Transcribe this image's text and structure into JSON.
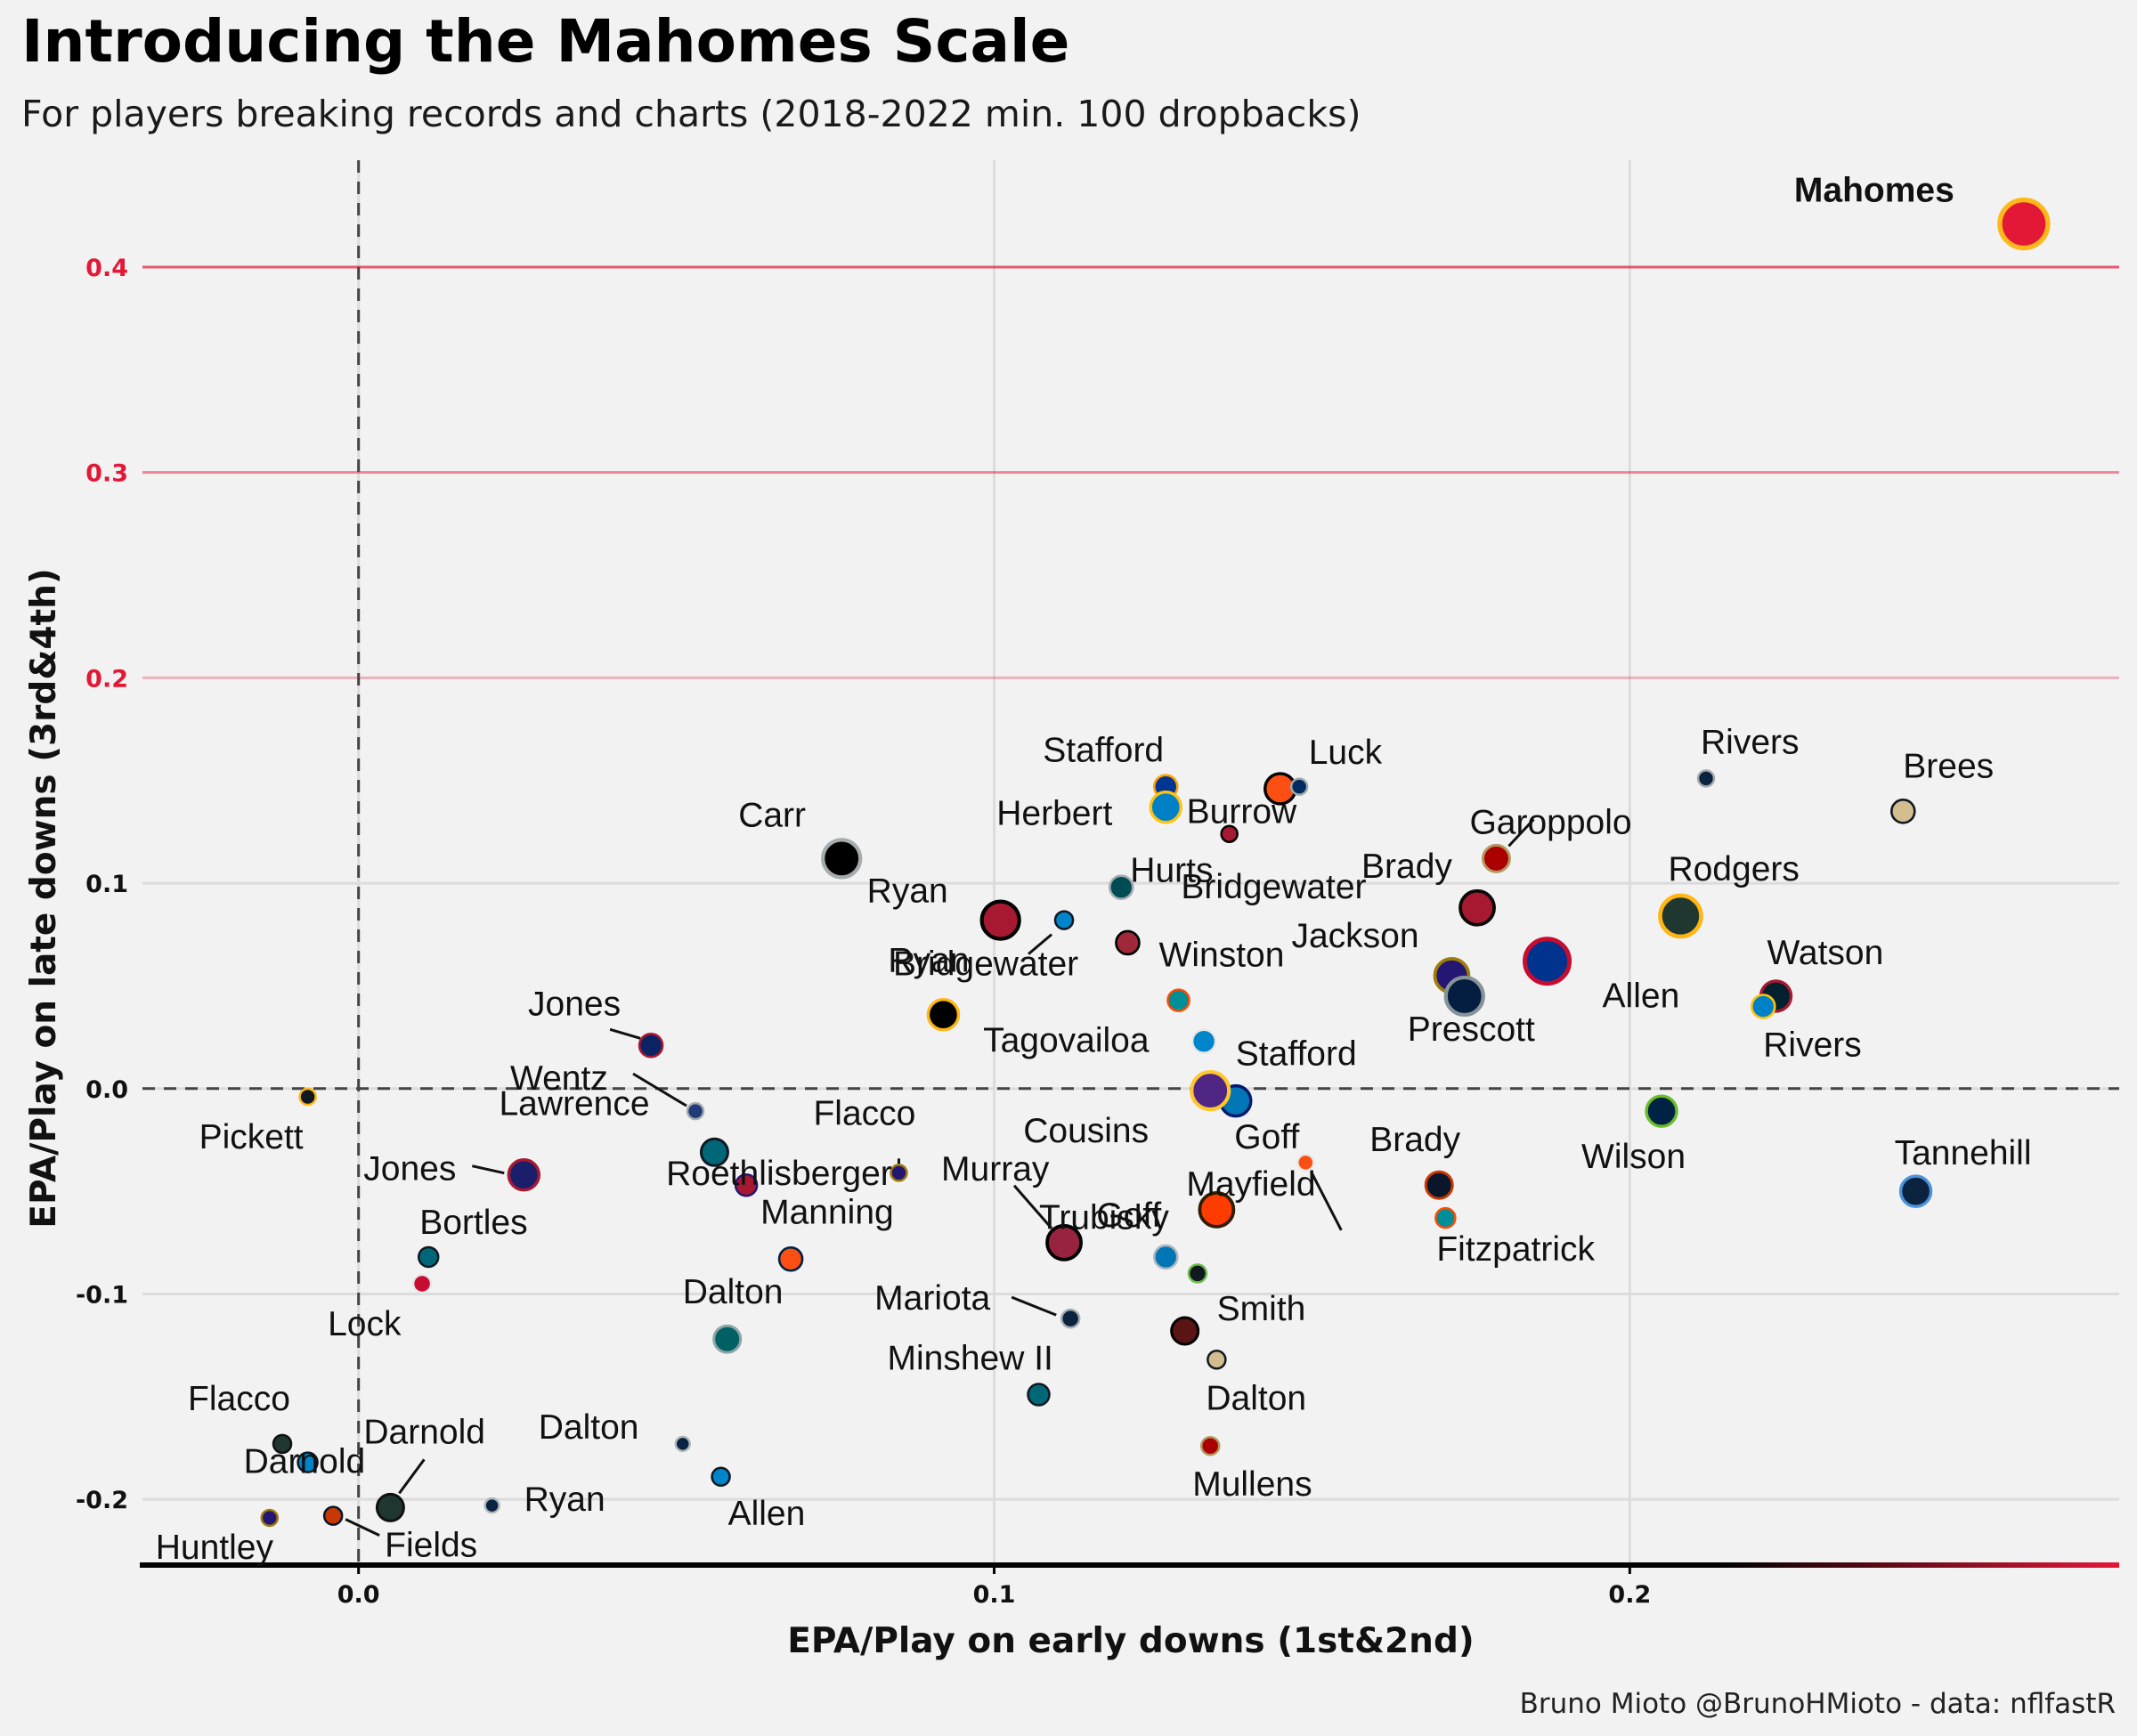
{
  "title": "Introducing the Mahomes Scale",
  "subtitle": "For players breaking records and charts (2018-2022 min. 100 dropbacks)",
  "caption": "Bruno Mioto @BrunoHMioto - data: nflfastR",
  "colors": {
    "accent": "#e31837",
    "background": "#f2f2f2",
    "grid": "#dcdcdc",
    "axis": "#000000"
  },
  "chart_data": {
    "type": "scatter",
    "xlabel": "EPA/Play on early downs (1st&2nd)",
    "ylabel": "EPA/Play on late downs (3rd&4th)",
    "xlim": [
      -0.034,
      0.277
    ],
    "ylim": [
      -0.232,
      0.452
    ],
    "xticks": [
      0.0,
      0.1,
      0.2
    ],
    "xtick_labels": [
      "0.0",
      "0.1",
      "0.2"
    ],
    "yticks": [
      -0.2,
      -0.1,
      0.0,
      0.1,
      0.2,
      0.3,
      0.4
    ],
    "ytick_labels": [
      "-0.2",
      "-0.1",
      "0.0",
      "0.1",
      "0.2",
      "0.3",
      "0.4"
    ],
    "reference_lines": {
      "x": 0.0,
      "y": 0.0,
      "style": "dashed"
    },
    "grid": true,
    "points": [
      {
        "label": "Mahomes",
        "x": 0.262,
        "y": 0.421,
        "fill": "#e31837",
        "stroke": "#ffb81c",
        "size": 27,
        "bold": true
      },
      {
        "label": "Brees",
        "x": 0.243,
        "y": 0.135,
        "fill": "#d3bc8d",
        "stroke": "#101820",
        "size": 13
      },
      {
        "label": "Rivers",
        "x": 0.212,
        "y": 0.151,
        "fill": "#0c2340",
        "stroke": "#a5acaf",
        "size": 9
      },
      {
        "label": "Rodgers",
        "x": 0.208,
        "y": 0.084,
        "fill": "#203731",
        "stroke": "#ffb612",
        "size": 23
      },
      {
        "label": "Watson",
        "x": 0.223,
        "y": 0.045,
        "fill": "#03202f",
        "stroke": "#a71930",
        "size": 17
      },
      {
        "label": "Rivers",
        "x": 0.221,
        "y": 0.04,
        "fill": "#0080c6",
        "stroke": "#ffc20e",
        "size": 13
      },
      {
        "label": "Tannehill",
        "x": 0.245,
        "y": -0.05,
        "fill": "#0c2340",
        "stroke": "#4b92db",
        "size": 17
      },
      {
        "label": "Wilson",
        "x": 0.205,
        "y": -0.011,
        "fill": "#002244",
        "stroke": "#69be28",
        "size": 17
      },
      {
        "label": "Garoppolo",
        "x": 0.179,
        "y": 0.112,
        "fill": "#aa0000",
        "stroke": "#b3995d",
        "size": 15
      },
      {
        "label": "Brady",
        "x": 0.176,
        "y": 0.088,
        "fill": "#a71930",
        "stroke": "#0a0a08",
        "size": 19
      },
      {
        "label": "Allen",
        "x": 0.187,
        "y": 0.062,
        "fill": "#00338d",
        "stroke": "#c60c30",
        "size": 25
      },
      {
        "label": "Jackson",
        "x": 0.172,
        "y": 0.055,
        "fill": "#241773",
        "stroke": "#9e7c0c",
        "size": 19
      },
      {
        "label": "Prescott",
        "x": 0.174,
        "y": 0.045,
        "fill": "#041e42",
        "stroke": "#869397",
        "size": 21
      },
      {
        "label": "Brady",
        "x": 0.17,
        "y": -0.047,
        "fill": "#0b162a",
        "stroke": "#c83803",
        "size": 15
      },
      {
        "label": "Fitzpatrick",
        "x": 0.171,
        "y": -0.063,
        "fill": "#008e97",
        "stroke": "#fc4c02",
        "size": 11
      },
      {
        "label": "Luck",
        "x": 0.145,
        "y": 0.146,
        "fill": "#fb4f14",
        "stroke": "#000000",
        "size": 17
      },
      {
        "label": "Luck",
        "x": 0.148,
        "y": 0.147,
        "fill": "#002c5f",
        "stroke": "#a2aaad",
        "size": 9
      },
      {
        "label": "Burrow",
        "x": 0.137,
        "y": 0.124,
        "fill": "#a71930",
        "stroke": "#000000",
        "size": 9
      },
      {
        "label": "Stafford",
        "x": 0.127,
        "y": 0.147,
        "fill": "#003594",
        "stroke": "#ffa300",
        "size": 13
      },
      {
        "label": "Herbert",
        "x": 0.127,
        "y": 0.137,
        "fill": "#0080c6",
        "stroke": "#ffc20e",
        "size": 17
      },
      {
        "label": "Hurts",
        "x": 0.12,
        "y": 0.098,
        "fill": "#004c54",
        "stroke": "#a5acaf",
        "size": 13
      },
      {
        "label": "Bridgewater",
        "x": 0.121,
        "y": 0.071,
        "fill": "#9f2939",
        "stroke": "#000000",
        "size": 13
      },
      {
        "label": "Ryan",
        "x": 0.101,
        "y": 0.082,
        "fill": "#a71930",
        "stroke": "#000000",
        "size": 21
      },
      {
        "label": "Bridgewater",
        "x": 0.111,
        "y": 0.082,
        "fill": "#0085ca",
        "stroke": "#101820",
        "size": 10
      },
      {
        "label": "Carr",
        "x": 0.076,
        "y": 0.112,
        "fill": "#000000",
        "stroke": "#a5acaf",
        "size": 21
      },
      {
        "label": "Winston",
        "x": 0.129,
        "y": 0.043,
        "fill": "#008e97",
        "stroke": "#fc4c02",
        "size": 12
      },
      {
        "label": "Tagovailoa",
        "x": 0.133,
        "y": 0.023,
        "fill": "#0085ca",
        "stroke": "#e8e8e8",
        "size": 13
      },
      {
        "label": "Stafford",
        "x": 0.138,
        "y": -0.006,
        "fill": "#0076b6",
        "stroke": "#001a70",
        "size": 17
      },
      {
        "label": "Cousins",
        "x": 0.134,
        "y": -0.001,
        "fill": "#4f2683",
        "stroke": "#ffc62f",
        "size": 21
      },
      {
        "label": "Goff",
        "x": 0.149,
        "y": -0.036,
        "fill": "#fb4f14",
        "stroke": "#e8e8e8",
        "size": 9
      },
      {
        "label": "Mayfield",
        "x": 0.135,
        "y": -0.059,
        "fill": "#ff3c00",
        "stroke": "#311d00",
        "size": 19
      },
      {
        "label": "Goff",
        "x": 0.127,
        "y": -0.082,
        "fill": "#0076b6",
        "stroke": "#b0b7bc",
        "size": 13
      },
      {
        "label": "Trubisky",
        "x": 0.132,
        "y": -0.09,
        "fill": "#101820",
        "stroke": "#6abf4b",
        "size": 10
      },
      {
        "label": "Smith",
        "x": 0.13,
        "y": -0.118,
        "fill": "#5a1414",
        "stroke": "#000000",
        "size": 15
      },
      {
        "label": "Dalton",
        "x": 0.135,
        "y": -0.132,
        "fill": "#d3bc8d",
        "stroke": "#101820",
        "size": 10
      },
      {
        "label": "Mullens",
        "x": 0.134,
        "y": -0.174,
        "fill": "#aa0000",
        "stroke": "#b3995d",
        "size": 10
      },
      {
        "label": "Murray",
        "x": 0.111,
        "y": -0.075,
        "fill": "#97233f",
        "stroke": "#000000",
        "size": 19
      },
      {
        "label": "Mariota",
        "x": 0.112,
        "y": -0.112,
        "fill": "#0c2340",
        "stroke": "#a5acaf",
        "size": 10
      },
      {
        "label": "Minshew II",
        "x": 0.107,
        "y": -0.149,
        "fill": "#006778",
        "stroke": "#101820",
        "size": 12
      },
      {
        "label": "Ryan",
        "x": 0.092,
        "y": 0.036,
        "fill": "#000000",
        "stroke": "#ffb612",
        "size": 17
      },
      {
        "label": "Flacco",
        "x": 0.085,
        "y": -0.041,
        "fill": "#241773",
        "stroke": "#9e7c0c",
        "size": 9
      },
      {
        "label": "Manning",
        "x": 0.068,
        "y": -0.083,
        "fill": "#fb4f14",
        "stroke": "#002244",
        "size": 13
      },
      {
        "label": "Roethlisberger",
        "x": 0.061,
        "y": -0.047,
        "fill": "#a71930",
        "stroke": "#241773",
        "size": 12
      },
      {
        "label": "Lawrence",
        "x": 0.056,
        "y": -0.031,
        "fill": "#006778",
        "stroke": "#101820",
        "size": 15
      },
      {
        "label": "Wentz",
        "x": 0.053,
        "y": -0.011,
        "fill": "#203a7a",
        "stroke": "#a5acaf",
        "size": 9
      },
      {
        "label": "Jones",
        "x": 0.046,
        "y": 0.021,
        "fill": "#0b2265",
        "stroke": "#a71930",
        "size": 13
      },
      {
        "label": "Dalton",
        "x": 0.058,
        "y": -0.122,
        "fill": "#006064",
        "stroke": "#8ea5a5",
        "size": 15
      },
      {
        "label": "Dalton",
        "x": 0.051,
        "y": -0.173,
        "fill": "#0a2343",
        "stroke": "#b0b7bc",
        "size": 8
      },
      {
        "label": "Allen",
        "x": 0.057,
        "y": -0.189,
        "fill": "#0085ca",
        "stroke": "#101820",
        "size": 10
      },
      {
        "label": "Jones",
        "x": 0.026,
        "y": -0.042,
        "fill": "#1b1f6b",
        "stroke": "#a71930",
        "size": 17
      },
      {
        "label": "Bortles",
        "x": 0.011,
        "y": -0.082,
        "fill": "#006778",
        "stroke": "#101820",
        "size": 11
      },
      {
        "label": "Lock",
        "x": 0.01,
        "y": -0.095,
        "fill": "#c60c30",
        "stroke": "#e8e8e8",
        "size": 10
      },
      {
        "label": "Pickett",
        "x": -0.008,
        "y": -0.004,
        "fill": "#101820",
        "stroke": "#ffb612",
        "size": 9
      },
      {
        "label": "Ryan",
        "x": 0.021,
        "y": -0.203,
        "fill": "#0a2343",
        "stroke": "#b0b7bc",
        "size": 8
      },
      {
        "label": "Darnold",
        "x": 0.005,
        "y": -0.204,
        "fill": "#203731",
        "stroke": "#101010",
        "size": 15
      },
      {
        "label": "Fields",
        "x": -0.004,
        "y": -0.208,
        "fill": "#c83803",
        "stroke": "#0b162a",
        "size": 10
      },
      {
        "label": "Flacco",
        "x": -0.012,
        "y": -0.173,
        "fill": "#203731",
        "stroke": "#101010",
        "size": 10
      },
      {
        "label": "Darnold",
        "x": -0.008,
        "y": -0.182,
        "fill": "#0085ca",
        "stroke": "#101820",
        "size": 11
      },
      {
        "label": "Huntley",
        "x": -0.014,
        "y": -0.209,
        "fill": "#241773",
        "stroke": "#9e7c0c",
        "size": 9
      }
    ]
  }
}
